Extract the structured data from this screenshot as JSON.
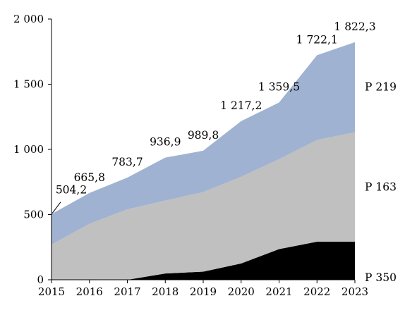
{
  "chart_data": {
    "type": "area",
    "stacked": true,
    "categories": [
      "2015",
      "2016",
      "2017",
      "2018",
      "2019",
      "2020",
      "2021",
      "2022",
      "2023"
    ],
    "series": [
      {
        "name": "P 350",
        "color": "#000000",
        "values": [
          0,
          0,
          0,
          48,
          62,
          125,
          235,
          292,
          292
        ]
      },
      {
        "name": "P 163",
        "color": "#c0c0c0",
        "values": [
          270,
          430,
          540,
          560,
          610,
          665,
          690,
          780,
          840
        ]
      },
      {
        "name": "P 219",
        "color": "#9fb2d1",
        "values": [
          234.2,
          235.8,
          243.7,
          328.9,
          317.8,
          427.2,
          434.5,
          650.1,
          690.3
        ]
      }
    ],
    "totals": [
      504.2,
      665.8,
      783.7,
      936.9,
      989.8,
      1217.2,
      1359.5,
      1722.1,
      1822.3
    ],
    "total_labels": [
      "504,2",
      "665,8",
      "783,7",
      "936,9",
      "989,8",
      "1 217,2",
      "1 359,5",
      "1 722,1",
      "1 822,3"
    ],
    "yticks": [
      {
        "value": 0,
        "label": "0"
      },
      {
        "value": 500,
        "label": "500"
      },
      {
        "value": 1000,
        "label": "1 000"
      },
      {
        "value": 1500,
        "label": "1 500"
      },
      {
        "value": 2000,
        "label": "2 000"
      }
    ],
    "ylim": [
      0,
      2000
    ],
    "grid": false,
    "legend": "inline-right",
    "title": "",
    "xlabel": "",
    "ylabel": ""
  }
}
